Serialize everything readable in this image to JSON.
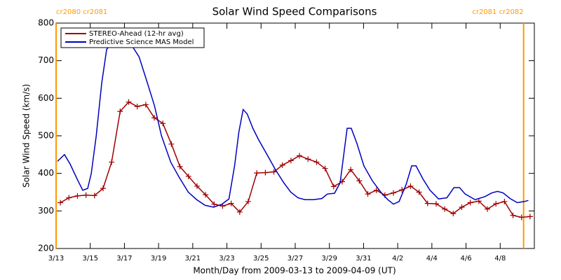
{
  "chart_data": {
    "type": "line",
    "title": "Solar Wind Speed Comparisons",
    "x_label": "Month/Day from 2009-03-13 to 2009-04-09 (UT)",
    "y_label": "Solar Wind Speed (km/s)",
    "xlim": [
      0,
      28
    ],
    "ylim": [
      200,
      800
    ],
    "xticks": [
      {
        "value": 0,
        "label": "3/13"
      },
      {
        "value": 2,
        "label": "3/15"
      },
      {
        "value": 4,
        "label": "3/17"
      },
      {
        "value": 6,
        "label": "3/19"
      },
      {
        "value": 8,
        "label": "3/21"
      },
      {
        "value": 10,
        "label": "3/23"
      },
      {
        "value": 12,
        "label": "3/25"
      },
      {
        "value": 14,
        "label": "3/27"
      },
      {
        "value": 16,
        "label": "3/29"
      },
      {
        "value": 18,
        "label": "3/31"
      },
      {
        "value": 20,
        "label": "4/2"
      },
      {
        "value": 22,
        "label": "4/4"
      },
      {
        "value": 24,
        "label": "4/6"
      },
      {
        "value": 26,
        "label": "4/8"
      }
    ],
    "yticks": [
      200,
      300,
      400,
      500,
      600,
      700,
      800
    ],
    "legend": "top-left",
    "boundaries": [
      {
        "x": 0,
        "label": "cr2080 cr2081",
        "color": "#ff9900"
      },
      {
        "x": 27.37,
        "label": "cr2081 cr2082",
        "color": "#ff9900"
      }
    ],
    "series": [
      {
        "name": "STEREO-Ahead (12-hr avg)",
        "color": "#a00000",
        "marker": "+",
        "x": [
          0.25,
          0.75,
          1.25,
          1.75,
          2.25,
          2.75,
          3.25,
          3.75,
          4.25,
          4.75,
          5.25,
          5.75,
          6.25,
          6.75,
          7.25,
          7.75,
          8.25,
          8.75,
          9.25,
          9.75,
          10.25,
          10.75,
          11.25,
          11.75,
          12.25,
          12.75,
          13.25,
          13.75,
          14.25,
          14.75,
          15.25,
          15.75,
          16.25,
          16.75,
          17.25,
          17.75,
          18.25,
          18.75,
          19.25,
          19.75,
          20.25,
          20.75,
          21.25,
          21.75,
          22.25,
          22.75,
          23.25,
          23.75,
          24.25,
          24.75,
          25.25,
          25.75,
          26.25,
          26.75,
          27.25,
          27.75
        ],
        "values": [
          322,
          335,
          340,
          342,
          341,
          360,
          430,
          565,
          590,
          578,
          583,
          548,
          533,
          478,
          418,
          392,
          366,
          343,
          318,
          313,
          320,
          297,
          325,
          401,
          402,
          404,
          422,
          434,
          447,
          438,
          430,
          413,
          365,
          378,
          410,
          380,
          345,
          355,
          342,
          348,
          356,
          366,
          350,
          320,
          319,
          305,
          293,
          310,
          322,
          326,
          305,
          319,
          325,
          288,
          283,
          285
        ]
      },
      {
        "name": "Predictive Science MAS Model",
        "color": "#0000c0",
        "x": [
          0.08,
          0.49,
          0.82,
          1.23,
          1.56,
          1.85,
          2.06,
          2.35,
          2.67,
          2.96,
          3.29,
          3.7,
          4.12,
          4.44,
          4.86,
          5.35,
          5.76,
          6.17,
          6.71,
          7.2,
          7.74,
          8.23,
          8.72,
          9.22,
          9.71,
          10.12,
          10.45,
          10.7,
          10.95,
          11.19,
          11.52,
          11.85,
          12.35,
          12.84,
          13.33,
          13.74,
          14.16,
          14.57,
          15.06,
          15.56,
          15.88,
          16.3,
          16.63,
          16.87,
          17.04,
          17.28,
          17.61,
          18.02,
          18.52,
          19.01,
          19.42,
          19.75,
          20.08,
          20.49,
          20.82,
          21.07,
          21.48,
          21.89,
          22.39,
          22.88,
          23.29,
          23.62,
          23.95,
          24.53,
          25.1,
          25.51,
          25.84,
          26.17,
          26.58,
          27.0,
          27.41,
          27.65
        ],
        "values": [
          432,
          450,
          425,
          385,
          355,
          360,
          400,
          500,
          640,
          730,
          750,
          750,
          752,
          740,
          710,
          640,
          580,
          500,
          430,
          390,
          350,
          330,
          315,
          310,
          318,
          332,
          420,
          510,
          570,
          558,
          520,
          490,
          450,
          410,
          375,
          350,
          335,
          330,
          330,
          333,
          345,
          347,
          375,
          460,
          520,
          520,
          480,
          420,
          380,
          350,
          330,
          318,
          325,
          370,
          420,
          420,
          385,
          355,
          332,
          335,
          362,
          362,
          345,
          330,
          338,
          348,
          352,
          348,
          333,
          322,
          325,
          328
        ]
      }
    ]
  }
}
